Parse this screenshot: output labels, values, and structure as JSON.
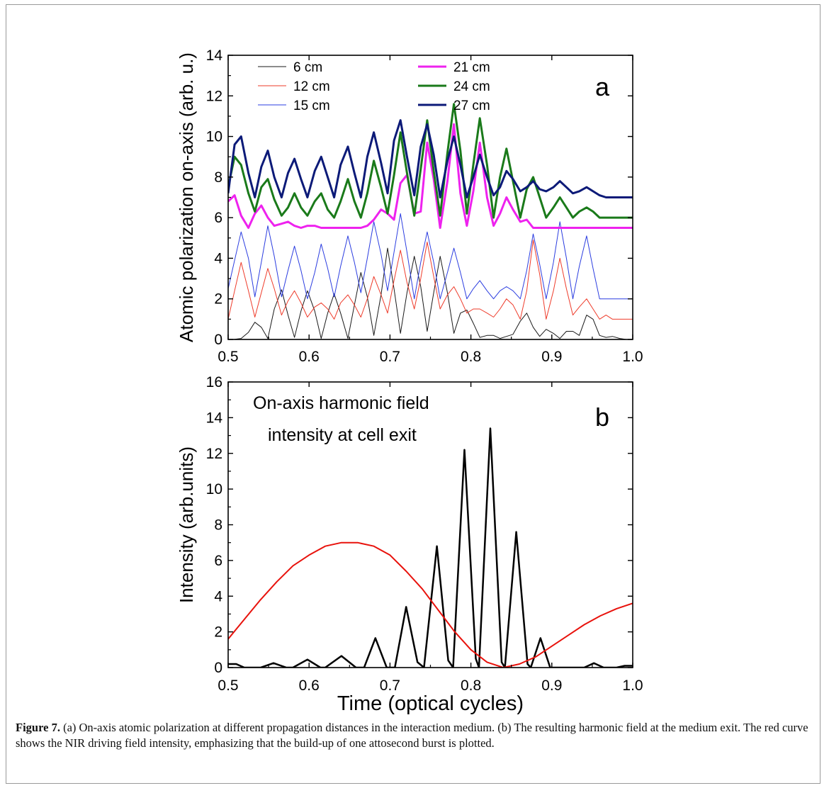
{
  "caption": {
    "label": "Figure 7.",
    "text": "(a) On-axis atomic polarization at different propagation distances in the interaction medium. (b) The resulting harmonic field at the medium exit. The red curve shows the NIR driving field intensity, emphasizing that the build-up of one attosecond burst is plotted."
  },
  "colors": {
    "6 cm": "#1a1a1a",
    "12 cm": "#ee3b2a",
    "15 cm": "#2b3de0",
    "21 cm": "#ee22ee",
    "24 cm": "#1a7a1a",
    "27 cm": "#0c1a78",
    "harmonic": "#000000",
    "driving": "#e8120c"
  },
  "chart_data": [
    {
      "type": "line",
      "panel_label": "a",
      "title": "",
      "xlabel": "",
      "ylabel": "Atomic polarization on-axis (arb. u.)",
      "xlim": [
        0.5,
        1.0
      ],
      "ylim": [
        0,
        14
      ],
      "xticks": [
        "0.5",
        "0.6",
        "0.7",
        "0.8",
        "0.9",
        "1.0"
      ],
      "yticks": [
        "0",
        "2",
        "4",
        "6",
        "8",
        "10",
        "12",
        "14"
      ],
      "legend_position": "top-left",
      "grid": false,
      "x": [
        0.5,
        0.508,
        0.516,
        0.525,
        0.533,
        0.541,
        0.549,
        0.557,
        0.566,
        0.574,
        0.582,
        0.59,
        0.598,
        0.607,
        0.615,
        0.623,
        0.631,
        0.639,
        0.648,
        0.656,
        0.664,
        0.672,
        0.68,
        0.689,
        0.697,
        0.705,
        0.713,
        0.721,
        0.73,
        0.738,
        0.746,
        0.754,
        0.762,
        0.771,
        0.779,
        0.787,
        0.795,
        0.803,
        0.811,
        0.82,
        0.828,
        0.836,
        0.844,
        0.852,
        0.861,
        0.869,
        0.877,
        0.885,
        0.893,
        0.902,
        0.91,
        0.918,
        0.926,
        0.934,
        0.943,
        0.951,
        0.959,
        0.967,
        0.975,
        0.984,
        0.992,
        1.0
      ],
      "series": [
        {
          "name": "6 cm",
          "width": 1,
          "values": [
            0.0,
            0.01,
            0.05,
            0.35,
            0.85,
            0.6,
            0.05,
            1.5,
            2.45,
            1.2,
            0.1,
            1.4,
            2.4,
            1.4,
            0.05,
            1.3,
            2.25,
            1.3,
            0.05,
            1.7,
            3.3,
            2.1,
            0.2,
            2.2,
            4.5,
            2.5,
            0.3,
            2.3,
            4.1,
            2.6,
            0.4,
            2.3,
            4.1,
            2.3,
            0.3,
            1.3,
            1.45,
            0.8,
            0.1,
            0.2,
            0.2,
            0.05,
            0.15,
            0.25,
            0.9,
            1.3,
            0.6,
            0.15,
            0.5,
            0.3,
            0.05,
            0.4,
            0.4,
            0.2,
            1.2,
            1.0,
            0.2,
            0.1,
            0.15,
            0.05,
            0.0,
            0.0
          ]
        },
        {
          "name": "12 cm",
          "width": 1,
          "values": [
            1.0,
            2.4,
            3.8,
            2.4,
            1.1,
            2.3,
            3.5,
            2.5,
            1.2,
            1.9,
            2.4,
            1.8,
            1.1,
            1.6,
            1.8,
            1.5,
            1.0,
            1.8,
            2.2,
            1.7,
            1.1,
            2.0,
            3.1,
            2.2,
            1.3,
            2.9,
            4.4,
            2.8,
            1.5,
            3.0,
            4.8,
            3.1,
            1.5,
            2.2,
            2.6,
            2.0,
            1.3,
            1.5,
            1.5,
            1.3,
            1.1,
            1.5,
            2.0,
            1.7,
            1.0,
            2.4,
            4.9,
            3.2,
            1.0,
            2.4,
            4.0,
            2.5,
            1.2,
            1.6,
            2.0,
            1.5,
            1.0,
            1.2,
            1.0,
            1.0,
            1.0,
            1.0
          ]
        },
        {
          "name": "15 cm",
          "width": 1,
          "values": [
            2.5,
            3.9,
            5.3,
            4.0,
            2.1,
            3.8,
            5.6,
            4.1,
            2.1,
            3.4,
            4.6,
            3.4,
            2.0,
            3.3,
            4.7,
            3.5,
            2.1,
            3.6,
            5.1,
            3.8,
            2.3,
            4.0,
            5.8,
            4.2,
            2.4,
            4.3,
            6.2,
            4.3,
            2.0,
            3.8,
            5.3,
            3.8,
            2.0,
            3.3,
            4.5,
            3.3,
            2.0,
            2.5,
            2.9,
            2.4,
            2.0,
            2.4,
            2.6,
            2.4,
            2.0,
            3.4,
            5.2,
            3.7,
            2.0,
            3.8,
            5.8,
            4.0,
            2.0,
            3.6,
            5.1,
            3.5,
            2.0,
            2.0,
            2.0,
            2.0,
            2.0,
            2.0
          ]
        },
        {
          "name": "21 cm",
          "width": 3,
          "values": [
            6.8,
            7.1,
            6.1,
            5.5,
            6.2,
            6.6,
            6.0,
            5.6,
            5.7,
            5.8,
            5.6,
            5.5,
            5.6,
            5.6,
            5.5,
            5.5,
            5.5,
            5.5,
            5.5,
            5.5,
            5.5,
            5.6,
            5.9,
            6.4,
            6.2,
            5.9,
            7.7,
            8.1,
            6.2,
            6.3,
            9.7,
            7.9,
            5.5,
            7.8,
            10.6,
            7.2,
            5.6,
            7.3,
            9.7,
            7.0,
            5.6,
            6.2,
            7.0,
            6.4,
            5.8,
            5.9,
            5.5,
            5.5,
            5.5,
            5.5,
            5.5,
            5.5,
            5.5,
            5.5,
            5.5,
            5.5,
            5.5,
            5.5,
            5.5,
            5.5,
            5.5,
            5.5
          ]
        },
        {
          "name": "24 cm",
          "width": 3,
          "values": [
            7.5,
            9.0,
            8.6,
            7.2,
            6.3,
            7.5,
            7.9,
            6.9,
            6.1,
            6.5,
            7.2,
            6.5,
            6.1,
            6.8,
            7.2,
            6.4,
            6.0,
            6.8,
            7.9,
            6.8,
            6.0,
            7.2,
            8.8,
            7.5,
            6.2,
            8.1,
            10.2,
            8.2,
            6.1,
            8.4,
            10.8,
            8.3,
            6.1,
            9.2,
            11.6,
            9.3,
            6.2,
            8.6,
            10.9,
            8.6,
            6.0,
            8.0,
            9.4,
            7.8,
            6.0,
            7.4,
            8.0,
            7.0,
            6.0,
            6.5,
            7.0,
            6.5,
            6.0,
            6.3,
            6.5,
            6.3,
            6.0,
            6.0,
            6.0,
            6.0,
            6.0,
            6.0
          ]
        },
        {
          "name": "27 cm",
          "width": 3,
          "values": [
            7.2,
            9.6,
            10.0,
            8.2,
            7.0,
            8.5,
            9.3,
            8.0,
            7.0,
            8.2,
            8.9,
            7.9,
            7.0,
            8.3,
            9.0,
            8.0,
            7.0,
            8.6,
            9.5,
            8.2,
            7.0,
            9.0,
            10.2,
            8.7,
            7.2,
            9.8,
            10.8,
            9.0,
            7.1,
            9.5,
            10.6,
            9.1,
            7.0,
            8.8,
            10.0,
            8.6,
            7.0,
            8.0,
            9.1,
            8.0,
            7.1,
            7.5,
            8.3,
            7.9,
            7.3,
            7.5,
            7.8,
            7.4,
            7.3,
            7.5,
            7.8,
            7.5,
            7.2,
            7.3,
            7.5,
            7.3,
            7.1,
            7.0,
            7.0,
            7.0,
            7.0,
            7.0
          ]
        }
      ]
    },
    {
      "type": "line",
      "panel_label": "b",
      "title": "",
      "annotation": [
        "On-axis harmonic field",
        "intensity at cell exit"
      ],
      "xlabel": "Time (optical cycles)",
      "ylabel": "Intensity (arb.units)",
      "xlim": [
        0.5,
        1.0
      ],
      "ylim": [
        0,
        16
      ],
      "xticks": [
        "0.5",
        "0.6",
        "0.7",
        "0.8",
        "0.9",
        "1.0"
      ],
      "yticks": [
        "0",
        "2",
        "4",
        "6",
        "8",
        "10",
        "12",
        "14",
        "16"
      ],
      "grid": false,
      "series": [
        {
          "name": "harmonic",
          "width": 2.5,
          "x": [
            0.5,
            0.51,
            0.52,
            0.54,
            0.556,
            0.572,
            0.58,
            0.598,
            0.614,
            0.62,
            0.64,
            0.658,
            0.668,
            0.682,
            0.696,
            0.706,
            0.72,
            0.734,
            0.742,
            0.758,
            0.772,
            0.778,
            0.792,
            0.806,
            0.81,
            0.824,
            0.838,
            0.842,
            0.856,
            0.87,
            0.874,
            0.886,
            0.898,
            0.91,
            0.94,
            0.952,
            0.964,
            0.98,
            0.99,
            1.0
          ],
          "values": [
            0.2,
            0.2,
            0.0,
            0.0,
            0.25,
            0.0,
            0.0,
            0.45,
            0.0,
            0.0,
            0.65,
            0.0,
            0.0,
            1.65,
            0.0,
            0.0,
            3.4,
            0.3,
            0.0,
            6.8,
            0.4,
            0.0,
            12.2,
            0.5,
            0.0,
            13.4,
            0.3,
            0.0,
            7.6,
            0.2,
            0.0,
            1.65,
            0.0,
            0.0,
            0.0,
            0.25,
            0.0,
            0.0,
            0.1,
            0.1
          ]
        },
        {
          "name": "driving",
          "width": 2,
          "x": [
            0.5,
            0.52,
            0.54,
            0.56,
            0.58,
            0.6,
            0.62,
            0.64,
            0.66,
            0.68,
            0.7,
            0.72,
            0.74,
            0.76,
            0.78,
            0.8,
            0.82,
            0.84,
            0.86,
            0.88,
            0.9,
            0.92,
            0.94,
            0.96,
            0.98,
            1.0
          ],
          "values": [
            1.6,
            2.7,
            3.8,
            4.8,
            5.7,
            6.3,
            6.8,
            7.0,
            7.0,
            6.8,
            6.3,
            5.4,
            4.4,
            3.2,
            2.0,
            1.0,
            0.3,
            0.0,
            0.2,
            0.6,
            1.2,
            1.8,
            2.4,
            2.9,
            3.3,
            3.6
          ]
        }
      ]
    }
  ]
}
